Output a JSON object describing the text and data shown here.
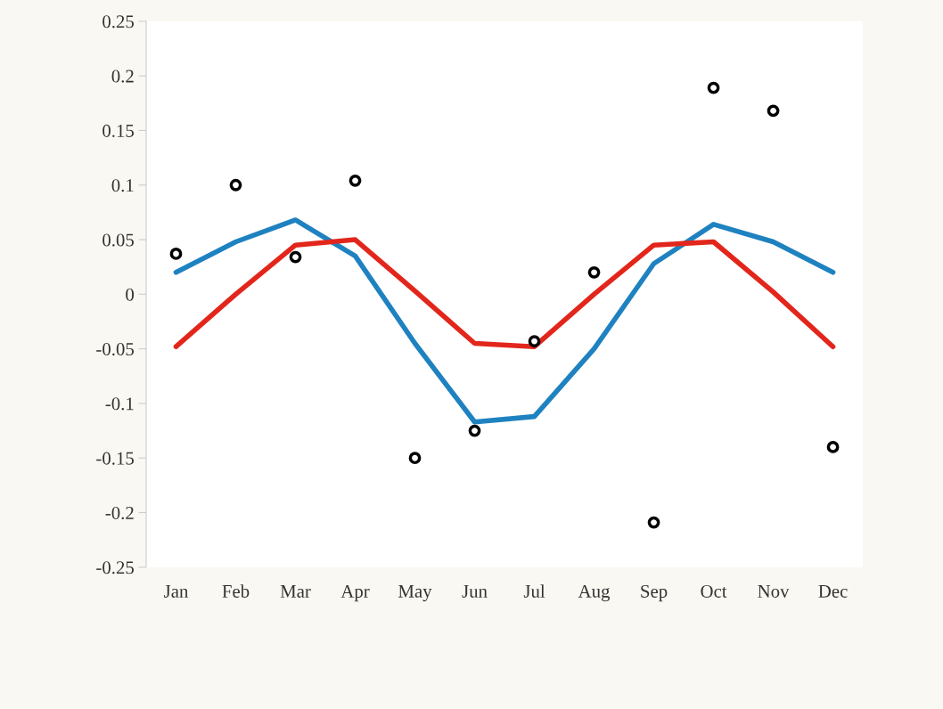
{
  "chart_data": {
    "type": "scatter",
    "categories": [
      "Jan",
      "Feb",
      "Mar",
      "Apr",
      "May",
      "Jun",
      "Jul",
      "Aug",
      "Sep",
      "Oct",
      "Nov",
      "Dec"
    ],
    "ylim": [
      -0.25,
      0.25
    ],
    "yticks": [
      {
        "value": -0.25,
        "label": "-0.25"
      },
      {
        "value": -0.2,
        "label": "-0.2"
      },
      {
        "value": -0.15,
        "label": "-0.15"
      },
      {
        "value": -0.1,
        "label": "-0.1"
      },
      {
        "value": -0.05,
        "label": "-0.05"
      },
      {
        "value": 0,
        "label": "0"
      },
      {
        "value": 0.05,
        "label": "0.05"
      },
      {
        "value": 0.1,
        "label": "0.1"
      },
      {
        "value": 0.15,
        "label": "0.15"
      },
      {
        "value": 0.2,
        "label": "0.2"
      },
      {
        "value": 0.25,
        "label": "0.25"
      }
    ],
    "grid": false,
    "legend": false,
    "series": [
      {
        "type": "line",
        "color": "#1f82c0",
        "marker": "none",
        "line_style": "solid",
        "values": [
          0.02,
          0.048,
          0.068,
          0.035,
          -0.045,
          -0.117,
          -0.112,
          -0.05,
          0.028,
          0.064,
          0.048,
          0.02
        ]
      },
      {
        "type": "line",
        "color": "#e2261c",
        "marker": "none",
        "line_style": "solid",
        "values": [
          -0.048,
          0.0,
          0.045,
          0.05,
          0.003,
          -0.045,
          -0.048,
          0.0,
          0.045,
          0.048,
          0.002,
          -0.048
        ]
      },
      {
        "color": "#000000",
        "marker": "circle",
        "values": [
          0.037,
          0.1,
          0.034,
          0.104,
          -0.15,
          -0.125,
          -0.043,
          0.02,
          -0.209,
          0.189,
          0.168,
          -0.14
        ]
      }
    ]
  }
}
